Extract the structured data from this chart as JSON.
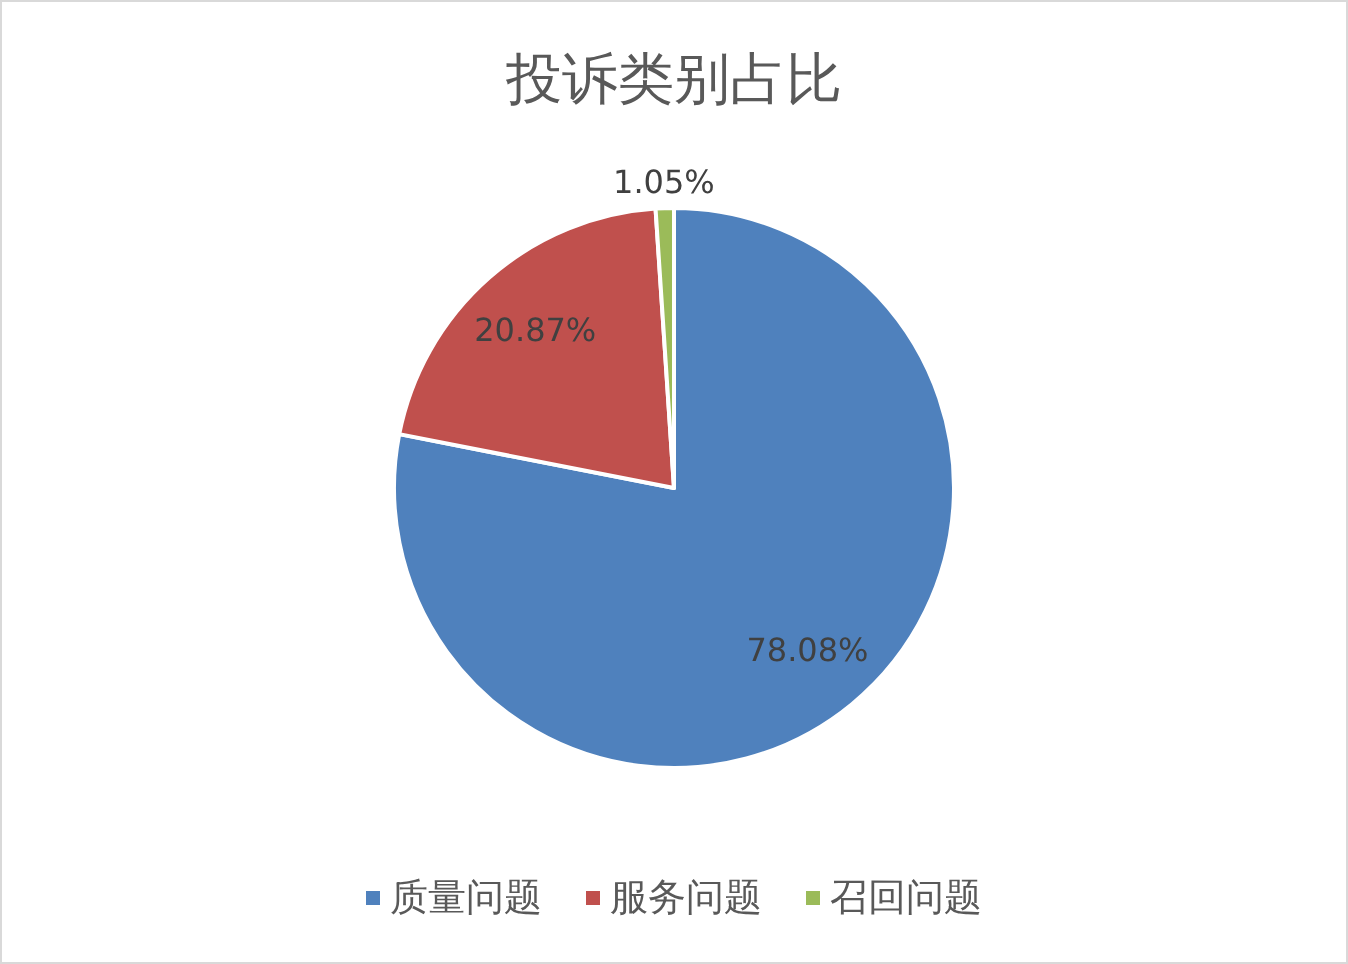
{
  "chart_data": {
    "type": "pie",
    "title": "投诉类别占比",
    "categories": [
      "质量问题",
      "服务问题",
      "召回问题"
    ],
    "values": [
      78.08,
      20.87,
      1.05
    ],
    "colors": [
      "#4f81bd",
      "#c0504d",
      "#9bbb59"
    ],
    "value_labels": [
      "78.08%",
      "20.87%",
      "1.05%"
    ],
    "legend": "bottom"
  }
}
